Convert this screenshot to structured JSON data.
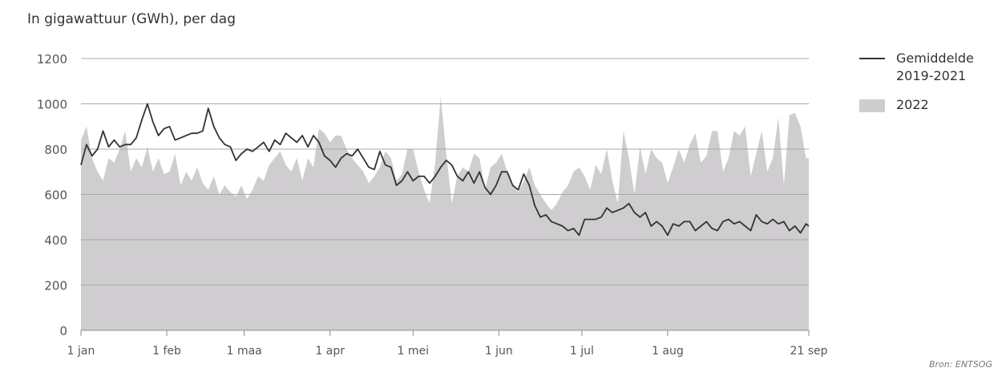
{
  "chart_data": {
    "type": "line",
    "ylabel": "In gigawattuur (GWh), per dag",
    "ylim": [
      0,
      1200
    ],
    "yticks": [
      0,
      200,
      400,
      600,
      800,
      1000,
      1200
    ],
    "x_range": [
      "1 jan",
      "21 sep"
    ],
    "xtick_labels": [
      "1 jan",
      "1 feb",
      "1 maa",
      "1 apr",
      "1 mei",
      "1 jun",
      "1 jul",
      "1 aug",
      "21 sep"
    ],
    "xtick_days": [
      0,
      31,
      59,
      90,
      120,
      151,
      181,
      212,
      263
    ],
    "grid": true,
    "legend_position": "right",
    "series": [
      {
        "name": "2022",
        "kind": "area",
        "color": "#cfcdcf",
        "x_days": [
          0,
          2,
          4,
          6,
          8,
          10,
          12,
          14,
          16,
          18,
          20,
          22,
          24,
          26,
          28,
          30,
          32,
          34,
          36,
          38,
          40,
          42,
          44,
          46,
          48,
          50,
          52,
          54,
          56,
          58,
          60,
          62,
          64,
          66,
          68,
          70,
          72,
          74,
          76,
          78,
          80,
          82,
          84,
          86,
          88,
          90,
          92,
          94,
          96,
          98,
          100,
          102,
          104,
          106,
          108,
          110,
          112,
          114,
          116,
          118,
          120,
          122,
          124,
          126,
          128,
          130,
          132,
          134,
          136,
          138,
          140,
          142,
          144,
          146,
          148,
          150,
          152,
          154,
          156,
          158,
          160,
          162,
          164,
          166,
          168,
          170,
          172,
          174,
          176,
          178,
          180,
          182,
          184,
          186,
          188,
          190,
          192,
          194,
          196,
          198,
          200,
          202,
          204,
          206,
          208,
          210,
          212,
          214,
          216,
          218,
          220,
          222,
          224,
          226,
          228,
          230,
          232,
          234,
          236,
          238,
          240,
          242,
          244,
          246,
          248,
          250,
          252,
          254,
          256,
          258,
          260,
          262,
          263
        ],
        "values": [
          840,
          900,
          760,
          700,
          660,
          760,
          740,
          800,
          880,
          700,
          760,
          720,
          810,
          700,
          760,
          690,
          700,
          780,
          640,
          700,
          660,
          720,
          650,
          620,
          680,
          600,
          640,
          610,
          590,
          640,
          580,
          620,
          680,
          660,
          730,
          760,
          790,
          730,
          700,
          760,
          660,
          760,
          720,
          890,
          870,
          830,
          860,
          860,
          800,
          760,
          730,
          700,
          650,
          680,
          720,
          790,
          760,
          660,
          690,
          800,
          800,
          700,
          620,
          560,
          740,
          1030,
          780,
          560,
          680,
          720,
          700,
          780,
          760,
          620,
          720,
          740,
          780,
          700,
          640,
          610,
          660,
          720,
          640,
          600,
          560,
          530,
          560,
          610,
          640,
          700,
          720,
          680,
          620,
          730,
          690,
          800,
          660,
          560,
          880,
          760,
          600,
          810,
          690,
          800,
          760,
          740,
          650,
          720,
          800,
          740,
          820,
          870,
          740,
          770,
          880,
          880,
          700,
          760,
          880,
          860,
          900,
          680,
          780,
          880,
          700,
          760,
          940,
          640,
          950,
          960,
          900,
          760,
          760
        ]
      },
      {
        "name": "Gemiddelde 2019-2021",
        "kind": "line",
        "color": "#333333",
        "x_days": [
          0,
          2,
          4,
          6,
          8,
          10,
          12,
          14,
          16,
          18,
          20,
          22,
          24,
          26,
          28,
          30,
          32,
          34,
          36,
          38,
          40,
          42,
          44,
          46,
          48,
          50,
          52,
          54,
          56,
          58,
          60,
          62,
          64,
          66,
          68,
          70,
          72,
          74,
          76,
          78,
          80,
          82,
          84,
          86,
          88,
          90,
          92,
          94,
          96,
          98,
          100,
          102,
          104,
          106,
          108,
          110,
          112,
          114,
          116,
          118,
          120,
          122,
          124,
          126,
          128,
          130,
          132,
          134,
          136,
          138,
          140,
          142,
          144,
          146,
          148,
          150,
          152,
          154,
          156,
          158,
          160,
          162,
          164,
          166,
          168,
          170,
          172,
          174,
          176,
          178,
          180,
          182,
          184,
          186,
          188,
          190,
          192,
          194,
          196,
          198,
          200,
          202,
          204,
          206,
          208,
          210,
          212,
          214,
          216,
          218,
          220,
          222,
          224,
          226,
          228,
          230,
          232,
          234,
          236,
          238,
          240,
          242,
          244,
          246,
          248,
          250,
          252,
          254,
          256,
          258,
          260,
          262,
          263
        ],
        "values": [
          730,
          820,
          770,
          800,
          880,
          810,
          840,
          810,
          820,
          820,
          850,
          930,
          1000,
          920,
          860,
          890,
          900,
          840,
          850,
          860,
          870,
          870,
          880,
          980,
          900,
          850,
          820,
          810,
          750,
          780,
          800,
          790,
          810,
          830,
          790,
          840,
          820,
          870,
          850,
          830,
          860,
          810,
          860,
          830,
          770,
          750,
          720,
          760,
          780,
          770,
          800,
          760,
          720,
          710,
          790,
          730,
          720,
          640,
          660,
          700,
          660,
          680,
          680,
          650,
          680,
          720,
          750,
          730,
          680,
          660,
          700,
          650,
          700,
          630,
          600,
          640,
          700,
          700,
          640,
          620,
          690,
          640,
          550,
          500,
          510,
          480,
          470,
          460,
          440,
          450,
          420,
          490,
          490,
          490,
          500,
          540,
          520,
          530,
          540,
          560,
          520,
          500,
          520,
          460,
          480,
          460,
          420,
          470,
          460,
          480,
          480,
          440,
          460,
          480,
          450,
          440,
          480,
          490,
          470,
          480,
          460,
          440,
          510,
          480,
          470,
          490,
          470,
          480,
          440,
          460,
          430,
          470,
          460
        ]
      }
    ]
  },
  "legend": {
    "line_label_1": "Gemiddelde",
    "line_label_2": "2019-2021",
    "area_label": "2022"
  },
  "source": "Bron: ENTSOG"
}
